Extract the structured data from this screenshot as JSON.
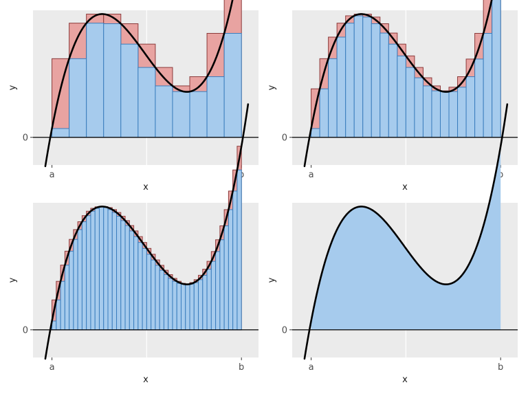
{
  "chart_data": [
    {
      "type": "bar",
      "panel": "top-left",
      "n_rectangles": 11,
      "xlabel": "x",
      "ylabel": "y",
      "x_tick_labels": [
        "a",
        "b"
      ],
      "y_tick_labels": [
        "0"
      ],
      "a": 0.0,
      "b": 1.0,
      "xlim": [
        -0.1,
        1.09
      ],
      "ylim": [
        -0.22,
        1.01
      ],
      "grid": true,
      "curve": "f(x) = 0.07 + 7.84x - 20.29x^2 + 13.84x^3",
      "colors": {
        "panel_bg": "#ebebeb",
        "gridline": "#ffffff",
        "lower_fill": "#a6cbed",
        "lower_edge": "#3a7dbd",
        "upper_fill": "#e8a3a1",
        "upper_edge": "#8b3a3a",
        "curve": "#000000",
        "zero_line": "#000000"
      }
    },
    {
      "type": "bar",
      "panel": "top-right",
      "n_rectangles": 22,
      "xlabel": "x",
      "ylabel": "y",
      "x_tick_labels": [
        "a",
        "b"
      ],
      "y_tick_labels": [
        "0"
      ],
      "a": 0.0,
      "b": 1.0,
      "xlim": [
        -0.1,
        1.09
      ],
      "ylim": [
        -0.22,
        1.01
      ],
      "grid": true,
      "curve": "f(x) = 0.07 + 7.84x - 20.29x^2 + 13.84x^3",
      "colors": {
        "panel_bg": "#ebebeb",
        "gridline": "#ffffff",
        "lower_fill": "#a6cbed",
        "lower_edge": "#3a7dbd",
        "upper_fill": "#e8a3a1",
        "upper_edge": "#8b3a3a",
        "curve": "#000000",
        "zero_line": "#000000"
      }
    },
    {
      "type": "bar",
      "panel": "bottom-left",
      "n_rectangles": 44,
      "xlabel": "x",
      "ylabel": "y",
      "x_tick_labels": [
        "a",
        "b"
      ],
      "y_tick_labels": [
        "0"
      ],
      "a": 0.0,
      "b": 1.0,
      "xlim": [
        -0.1,
        1.09
      ],
      "ylim": [
        -0.22,
        1.01
      ],
      "grid": true,
      "curve": "f(x) = 0.07 + 7.84x - 20.29x^2 + 13.84x^3",
      "colors": {
        "panel_bg": "#ebebeb",
        "gridline": "#ffffff",
        "lower_fill": "#a6cbed",
        "lower_edge": "#3a7dbd",
        "upper_fill": "#e8a3a1",
        "upper_edge": "#8b3a3a",
        "curve": "#000000",
        "zero_line": "#000000"
      }
    },
    {
      "type": "area",
      "panel": "bottom-right",
      "n_rectangles": 0,
      "xlabel": "x",
      "ylabel": "y",
      "x_tick_labels": [
        "a",
        "b"
      ],
      "y_tick_labels": [
        "0"
      ],
      "a": 0.0,
      "b": 1.0,
      "xlim": [
        -0.1,
        1.09
      ],
      "ylim": [
        -0.22,
        1.01
      ],
      "grid": true,
      "curve": "f(x) = 0.07 + 7.84x - 20.29x^2 + 13.84x^3",
      "colors": {
        "panel_bg": "#ebebeb",
        "gridline": "#ffffff",
        "lower_fill": "#a6cbed",
        "lower_edge": "#3a7dbd",
        "upper_fill": "#e8a3a1",
        "upper_edge": "#8b3a3a",
        "curve": "#000000",
        "zero_line": "#000000"
      }
    }
  ]
}
